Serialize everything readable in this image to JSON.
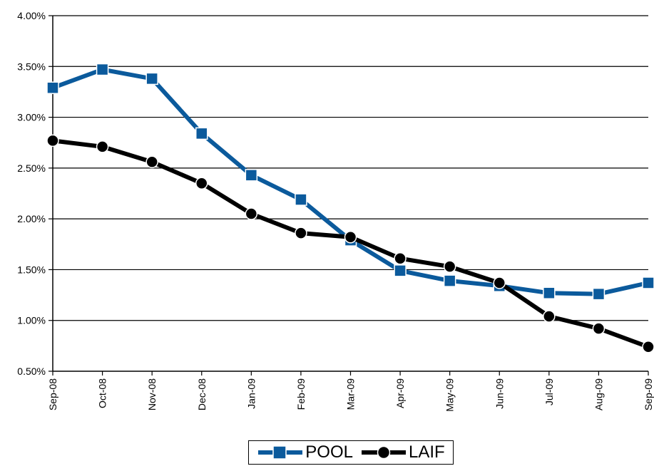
{
  "chart_data": {
    "type": "line",
    "title": "",
    "xlabel": "",
    "ylabel": "",
    "categories": [
      "Sep-08",
      "Oct-08",
      "Nov-08",
      "Dec-08",
      "Jan-09",
      "Feb-09",
      "Mar-09",
      "Apr-09",
      "May-09",
      "Jun-09",
      "Jul-09",
      "Aug-09",
      "Sep-09"
    ],
    "ylim": [
      0.5,
      4.0
    ],
    "yticks": [
      0.5,
      1.0,
      1.5,
      2.0,
      2.5,
      3.0,
      3.5,
      4.0
    ],
    "ytick_labels": [
      "0.50%",
      "1.00%",
      "1.50%",
      "2.00%",
      "2.50%",
      "3.00%",
      "3.50%",
      "4.00%"
    ],
    "grid": true,
    "legend_position": "bottom-center",
    "series": [
      {
        "name": "POOL",
        "color": "#0b5a9c",
        "marker": "square",
        "values": [
          3.29,
          3.47,
          3.38,
          2.84,
          2.43,
          2.19,
          1.79,
          1.49,
          1.39,
          1.34,
          1.27,
          1.26,
          1.37
        ]
      },
      {
        "name": "LAIF",
        "color": "#000000",
        "marker": "circle",
        "values": [
          2.77,
          2.71,
          2.56,
          2.35,
          2.05,
          1.86,
          1.82,
          1.61,
          1.53,
          1.37,
          1.04,
          0.92,
          0.74
        ]
      }
    ]
  }
}
